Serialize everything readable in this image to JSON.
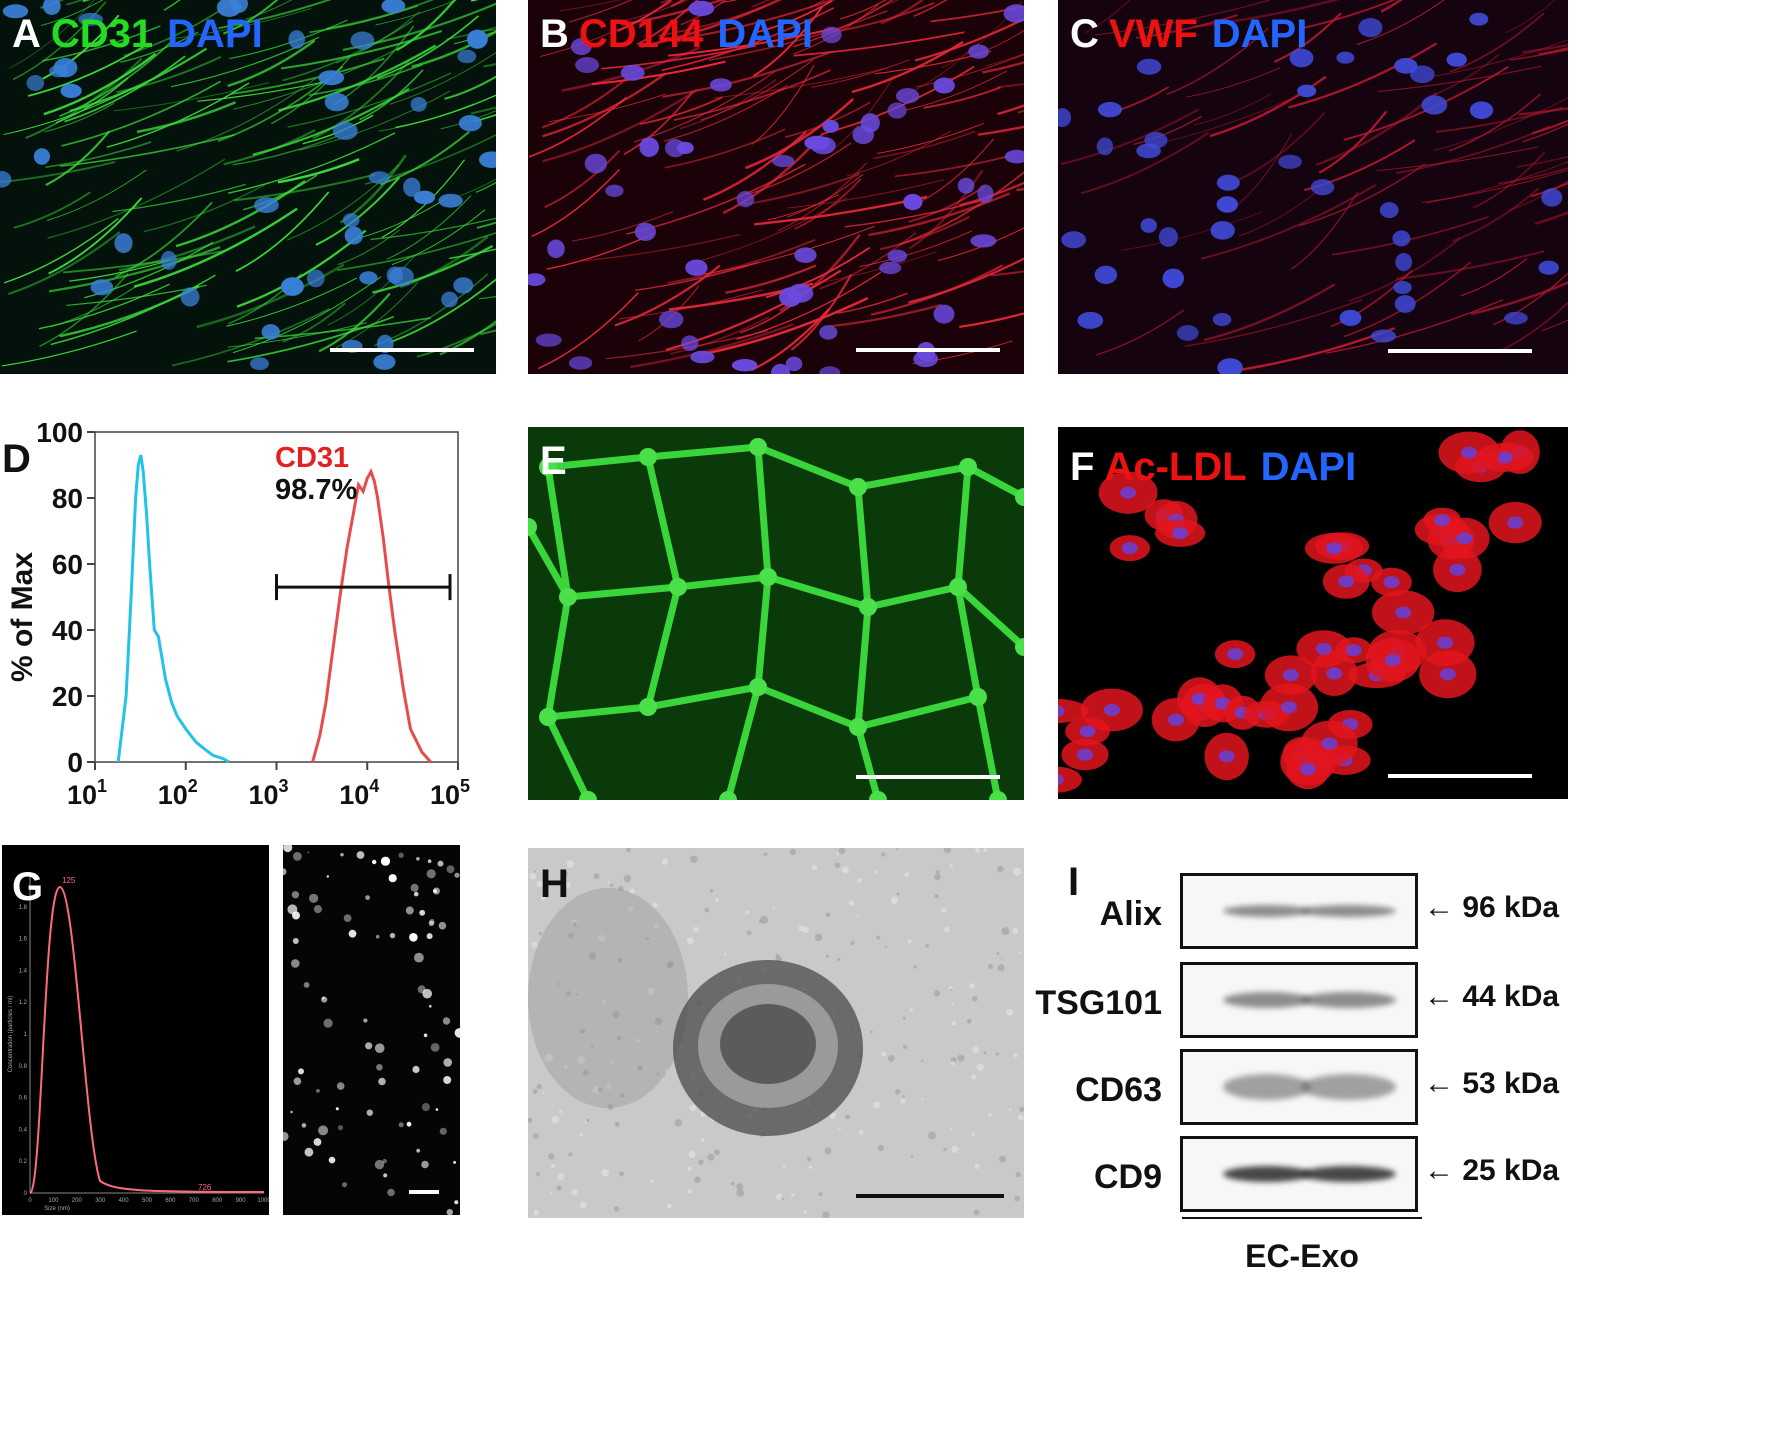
{
  "panels": {
    "A": {
      "letter": "A",
      "stains": [
        {
          "text": "CD31",
          "color": "#22dd22"
        },
        {
          "text": "DAPI",
          "color": "#2266ff"
        }
      ]
    },
    "B": {
      "letter": "B",
      "stains": [
        {
          "text": "CD144",
          "color": "#ee1111"
        },
        {
          "text": "DAPI",
          "color": "#2266ff"
        }
      ]
    },
    "C": {
      "letter": "C",
      "stains": [
        {
          "text": "VWF",
          "color": "#ee1111"
        },
        {
          "text": "DAPI",
          "color": "#2266ff"
        }
      ]
    },
    "E": {
      "letter": "E"
    },
    "F": {
      "letter": "F",
      "stains": [
        {
          "text": "Ac-LDL",
          "color": "#ee1111"
        },
        {
          "text": "DAPI",
          "color": "#2266ff"
        }
      ]
    },
    "G": {
      "letter": "G"
    },
    "H": {
      "letter": "H"
    },
    "I": {
      "letter": "I"
    }
  },
  "chart_data": {
    "type": "line",
    "panel_letter": "D",
    "ylabel": "% of Max",
    "yticks": [
      "0",
      "20",
      "40",
      "60",
      "80",
      "100"
    ],
    "ylim": [
      0,
      100
    ],
    "xscale": "log",
    "xlim": [
      10,
      100000
    ],
    "xticks": [
      {
        "base": "10",
        "exp": "1"
      },
      {
        "base": "10",
        "exp": "2"
      },
      {
        "base": "10",
        "exp": "3"
      },
      {
        "base": "10",
        "exp": "4"
      },
      {
        "base": "10",
        "exp": "5"
      }
    ],
    "annotation_marker": "CD31",
    "annotation_percent": "98.7%",
    "gate": [
      1000,
      100000
    ],
    "gate_y": 53,
    "series": [
      {
        "color": "#22c3e6",
        "x": [
          18,
          22,
          25,
          28,
          30,
          32,
          34,
          37,
          40,
          45,
          50,
          60,
          70,
          80,
          100,
          130,
          160,
          200,
          260,
          300
        ],
        "y": [
          0,
          20,
          50,
          80,
          90,
          93,
          88,
          75,
          60,
          40,
          38,
          25,
          18,
          14,
          10,
          6,
          4,
          2,
          1,
          0
        ]
      },
      {
        "color": "#e74c4c",
        "x": [
          2500,
          3000,
          3500,
          4000,
          5000,
          6000,
          7000,
          8000,
          9000,
          10000,
          11000,
          12000,
          13000,
          15000,
          17000,
          20000,
          25000,
          30000,
          40000,
          50000
        ],
        "y": [
          0,
          8,
          18,
          30,
          50,
          65,
          75,
          84,
          82,
          86,
          88,
          85,
          80,
          68,
          55,
          40,
          22,
          10,
          3,
          0
        ]
      }
    ]
  },
  "nta": {
    "peak_label": "125",
    "tail_label": "726",
    "ylabel": "Concentration (particles / ml)",
    "xlabel": "Size (nm)",
    "xticks": [
      "0",
      "100",
      "200",
      "300",
      "400",
      "500",
      "600",
      "700",
      "800",
      "900",
      "1000"
    ],
    "yticks": [
      "0",
      "0.2",
      "0.4",
      "0.6",
      "0.8",
      "1",
      "1.2",
      "1.4",
      "1.6",
      "1.8"
    ]
  },
  "western_blot": {
    "rows": [
      {
        "protein": "Alix",
        "kda": "96 kDa"
      },
      {
        "protein": "TSG101",
        "kda": "44 kDa"
      },
      {
        "protein": "CD63",
        "kda": "53 kDa"
      },
      {
        "protein": "CD9",
        "kda": "25 kDa"
      }
    ],
    "group_label": "EC-Exo",
    "arrow_glyph": "←"
  }
}
